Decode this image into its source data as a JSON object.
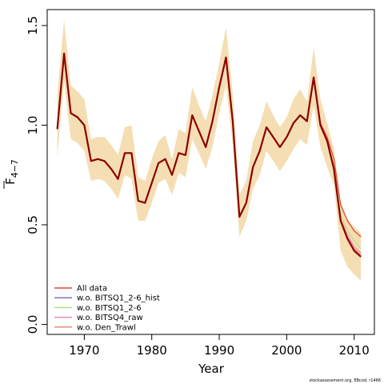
{
  "chart_data": {
    "type": "line",
    "xlabel": "Year",
    "ylabel": {
      "base": "F",
      "subscript": "4−7"
    },
    "xlim": [
      1964.5,
      2013
    ],
    "ylim": [
      -0.05,
      1.58
    ],
    "x_ticks": [
      1970,
      1980,
      1990,
      2000,
      2010
    ],
    "y_ticks": [
      0.0,
      0.5,
      1.0,
      1.5
    ],
    "y_tick_labels": [
      "0.0",
      "0.5",
      "1.0",
      "1.5"
    ],
    "x_tick_labels": [
      "1970",
      "1980",
      "1990",
      "2000",
      "2010"
    ],
    "x": [
      1966,
      1967,
      1968,
      1969,
      1970,
      1971,
      1972,
      1973,
      1974,
      1975,
      1976,
      1977,
      1978,
      1979,
      1980,
      1981,
      1982,
      1983,
      1984,
      1985,
      1986,
      1987,
      1988,
      1989,
      1990,
      1991,
      1992,
      1993,
      1994,
      1995,
      1996,
      1997,
      1998,
      1999,
      2000,
      2001,
      2002,
      2003,
      2004,
      2005,
      2006,
      2007,
      2008,
      2009,
      2010,
      2011
    ],
    "band": {
      "color": "#f5deb3",
      "upper": [
        1.15,
        1.53,
        1.2,
        1.17,
        1.13,
        0.93,
        0.94,
        0.94,
        0.9,
        0.85,
        0.99,
        1.0,
        0.74,
        0.72,
        0.83,
        0.92,
        0.95,
        0.83,
        0.98,
        0.96,
        1.19,
        1.1,
        1.02,
        1.15,
        1.31,
        1.49,
        1.16,
        0.65,
        0.72,
        0.92,
        1.0,
        1.12,
        1.05,
        0.99,
        1.04,
        1.13,
        1.18,
        1.12,
        1.39,
        1.13,
        1.01,
        0.88,
        0.62,
        0.53,
        0.49,
        0.46
      ],
      "lower": [
        0.84,
        1.22,
        0.93,
        0.91,
        0.87,
        0.72,
        0.73,
        0.72,
        0.68,
        0.63,
        0.75,
        0.73,
        0.52,
        0.52,
        0.61,
        0.71,
        0.73,
        0.65,
        0.76,
        0.74,
        0.93,
        0.86,
        0.78,
        0.89,
        1.06,
        1.2,
        0.9,
        0.44,
        0.52,
        0.68,
        0.75,
        0.87,
        0.82,
        0.77,
        0.82,
        0.88,
        0.93,
        0.9,
        1.1,
        0.89,
        0.79,
        0.7,
        0.37,
        0.29,
        0.25,
        0.22
      ]
    },
    "series": [
      {
        "name": "All data",
        "color": "#e8453c",
        "values": [
          0.98,
          1.36,
          1.06,
          1.04,
          1.0,
          0.82,
          0.83,
          0.82,
          0.78,
          0.73,
          0.86,
          0.86,
          0.62,
          0.61,
          0.71,
          0.81,
          0.83,
          0.75,
          0.86,
          0.85,
          1.05,
          0.97,
          0.89,
          1.02,
          1.19,
          1.34,
          1.02,
          0.54,
          0.61,
          0.79,
          0.87,
          0.99,
          0.94,
          0.89,
          0.94,
          1.01,
          1.05,
          1.02,
          1.24,
          1.01,
          0.94,
          0.83,
          0.6,
          0.52,
          0.47,
          0.44
        ]
      },
      {
        "name": "w.o. BITSQ1_2-6_hist",
        "color": "#8b6fc7",
        "values": [
          0.98,
          1.36,
          1.06,
          1.04,
          1.0,
          0.82,
          0.83,
          0.82,
          0.78,
          0.73,
          0.86,
          0.86,
          0.62,
          0.61,
          0.71,
          0.81,
          0.83,
          0.75,
          0.86,
          0.85,
          1.05,
          0.97,
          0.89,
          1.02,
          1.19,
          1.34,
          1.02,
          0.54,
          0.61,
          0.79,
          0.87,
          0.99,
          0.94,
          0.89,
          0.94,
          1.01,
          1.05,
          1.02,
          1.24,
          1.0,
          0.92,
          0.78,
          0.52,
          0.43,
          0.37,
          0.34
        ]
      },
      {
        "name": "w.o. BITSQ1_2-6",
        "color": "#b5e07a",
        "values": [
          0.98,
          1.36,
          1.06,
          1.04,
          1.0,
          0.82,
          0.83,
          0.82,
          0.78,
          0.73,
          0.86,
          0.86,
          0.62,
          0.61,
          0.71,
          0.81,
          0.83,
          0.75,
          0.86,
          0.85,
          1.05,
          0.97,
          0.89,
          1.02,
          1.19,
          1.34,
          1.02,
          0.54,
          0.61,
          0.79,
          0.87,
          0.99,
          0.94,
          0.89,
          0.94,
          1.01,
          1.05,
          1.02,
          1.24,
          1.0,
          0.92,
          0.8,
          0.55,
          0.47,
          0.42,
          0.38
        ]
      },
      {
        "name": "w.o. BITSQ4_raw",
        "color": "#f28ac2",
        "values": [
          0.98,
          1.36,
          1.06,
          1.04,
          1.0,
          0.82,
          0.83,
          0.82,
          0.78,
          0.73,
          0.86,
          0.86,
          0.62,
          0.61,
          0.71,
          0.81,
          0.83,
          0.75,
          0.86,
          0.85,
          1.05,
          0.97,
          0.89,
          1.02,
          1.19,
          1.34,
          1.02,
          0.54,
          0.61,
          0.79,
          0.87,
          0.99,
          0.94,
          0.89,
          0.94,
          1.01,
          1.05,
          1.02,
          1.24,
          1.0,
          0.92,
          0.79,
          0.53,
          0.45,
          0.39,
          0.36
        ]
      },
      {
        "name": "w.o. Den_Trawl",
        "color": "#ef8a73",
        "values": [
          0.98,
          1.36,
          1.06,
          1.04,
          1.0,
          0.82,
          0.83,
          0.82,
          0.78,
          0.73,
          0.86,
          0.86,
          0.62,
          0.61,
          0.71,
          0.81,
          0.83,
          0.75,
          0.86,
          0.85,
          1.05,
          0.97,
          0.89,
          1.02,
          1.19,
          1.34,
          1.02,
          0.54,
          0.61,
          0.79,
          0.87,
          0.99,
          0.94,
          0.89,
          0.94,
          1.01,
          1.05,
          1.02,
          1.24,
          1.0,
          0.92,
          0.79,
          0.53,
          0.44,
          0.38,
          0.35
        ]
      },
      {
        "name": "",
        "color": "#8b0000",
        "values": [
          0.98,
          1.36,
          1.06,
          1.04,
          1.0,
          0.82,
          0.83,
          0.82,
          0.78,
          0.73,
          0.86,
          0.86,
          0.62,
          0.61,
          0.71,
          0.81,
          0.83,
          0.75,
          0.86,
          0.85,
          1.05,
          0.97,
          0.89,
          1.02,
          1.19,
          1.34,
          1.02,
          0.54,
          0.61,
          0.79,
          0.87,
          0.99,
          0.94,
          0.89,
          0.94,
          1.01,
          1.05,
          1.02,
          1.24,
          1.0,
          0.92,
          0.78,
          0.52,
          0.43,
          0.37,
          0.34
        ]
      }
    ],
    "legend_position": "bottom-left",
    "grid": false
  },
  "footnote": "stockassessment.org, EBcod, r1466"
}
